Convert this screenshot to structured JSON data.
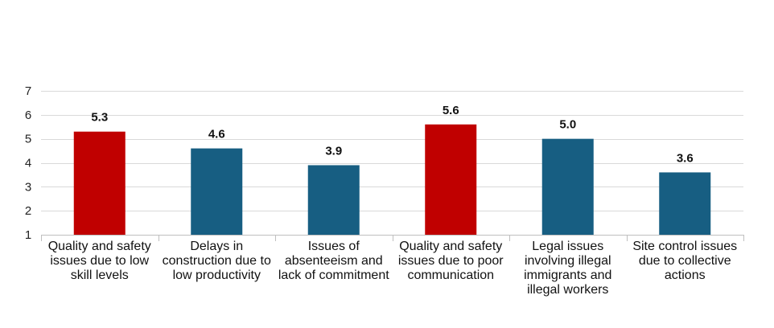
{
  "chart_data": {
    "type": "bar",
    "title": "",
    "xlabel": "",
    "ylabel": "",
    "categories": [
      "Quality and safety issues due to low skill levels",
      "Delays in construction due to low productivity",
      "Issues of absenteeism and lack of commitment",
      "Quality and safety issues due to poor communication",
      "Legal issues involving illegal immigrants and illegal workers",
      "Site control issues due to collective actions"
    ],
    "values": [
      5.3,
      4.6,
      3.9,
      5.6,
      5.0,
      3.6
    ],
    "value_labels": [
      "5.3",
      "4.6",
      "3.9",
      "5.6",
      "5.0",
      "3.6"
    ],
    "ylim": [
      1,
      7
    ],
    "yticks": [
      1,
      2,
      3,
      4,
      5,
      6,
      7
    ],
    "grid": true,
    "legend": "none",
    "colors": {
      "highlight": "#c00000",
      "default": "#175e82",
      "grid": "#d9d9d9",
      "axis": "#bfbfbf"
    },
    "highlighted": [
      true,
      false,
      false,
      true,
      false,
      false
    ]
  }
}
